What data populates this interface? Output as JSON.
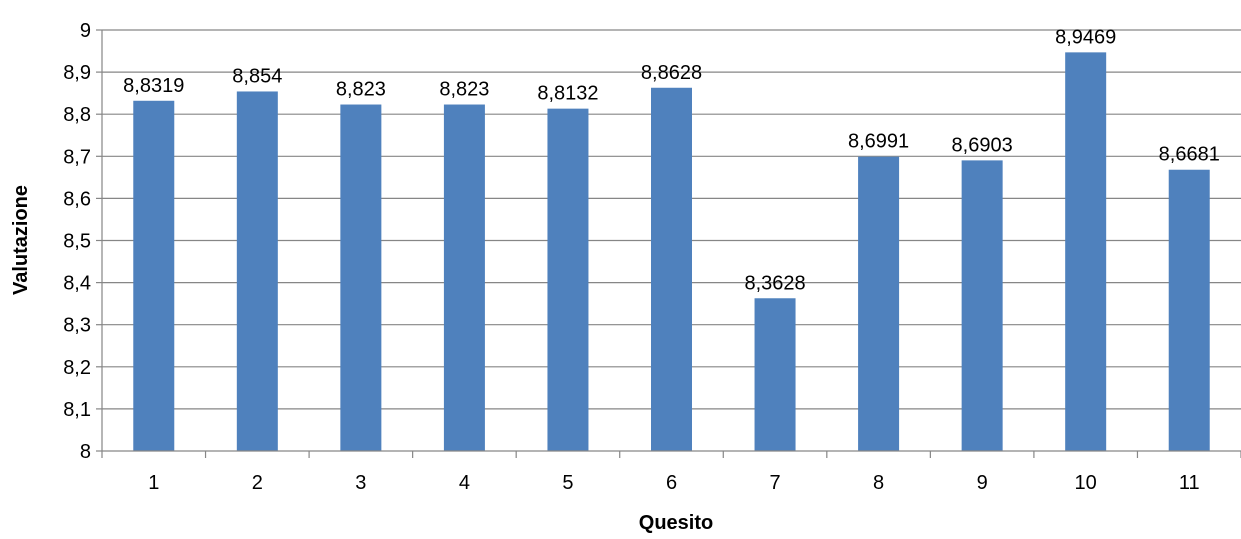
{
  "chart_data": {
    "type": "bar",
    "categories": [
      "1",
      "2",
      "3",
      "4",
      "5",
      "6",
      "7",
      "8",
      "9",
      "10",
      "11"
    ],
    "values": [
      8.8319,
      8.854,
      8.823,
      8.823,
      8.8132,
      8.8628,
      8.3628,
      8.6991,
      8.6903,
      8.9469,
      8.6681
    ],
    "data_labels": [
      "8,8319",
      "8,854",
      "8,823",
      "8,823",
      "8,8132",
      "8,8628",
      "8,3628",
      "8,6991",
      "8,6903",
      "8,9469",
      "8,6681"
    ],
    "y_ticks": [
      8,
      8.1,
      8.2,
      8.3,
      8.4,
      8.5,
      8.6,
      8.7,
      8.8,
      8.9,
      9
    ],
    "y_tick_labels": [
      "8",
      "8,1",
      "8,2",
      "8,3",
      "8,4",
      "8,5",
      "8,6",
      "8,7",
      "8,8",
      "8,9",
      "9"
    ],
    "xlabel": "Quesito",
    "ylabel": "Valutazione",
    "ylim": [
      8,
      9
    ],
    "grid": true,
    "legend": "none",
    "bar_color": "#4F81BD",
    "grid_color": "#868686"
  }
}
